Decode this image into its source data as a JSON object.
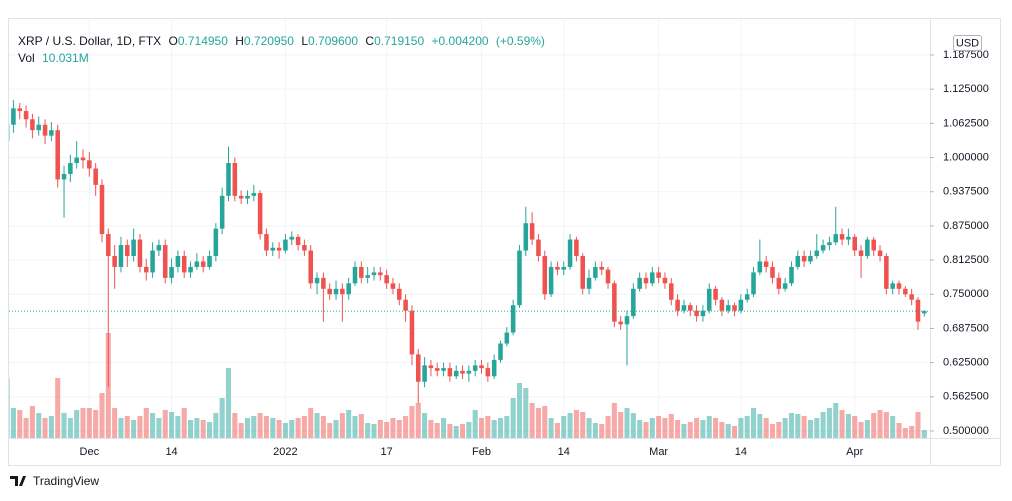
{
  "chart_data": {
    "type": "candlestick",
    "title": "XRP / U.S. Dollar, 1D, FTX",
    "ohlc_labels": [
      "O",
      "H",
      "L",
      "C"
    ],
    "ohlc_values": [
      {
        "value": 0.71495,
        "label": "0.714950"
      },
      {
        "value": 0.72095,
        "label": "0.720950"
      },
      {
        "value": 0.7096,
        "label": "0.709600"
      },
      {
        "value": 0.71915,
        "label": "0.719150"
      }
    ],
    "change": {
      "value": 0.0042,
      "label": "+0.004200"
    },
    "change_pct": {
      "value": 0.59,
      "label": "(+0.59%)"
    },
    "volume_label": "Vol",
    "volume_value": {
      "value": 10.031,
      "label": "10.031M"
    },
    "currency": "USD",
    "brand": "TradingView",
    "up_color": "#26a69a",
    "down_color": "#ef5350",
    "grid": true,
    "ylim": [
      0.4872,
      1.2515
    ],
    "xlim": [
      0.3,
      145.9
    ],
    "yticks": [
      {
        "value": 0.5,
        "label": "0.500000"
      },
      {
        "value": 0.5625,
        "label": "0.562500"
      },
      {
        "value": 0.625,
        "label": "0.625000"
      },
      {
        "value": 0.6875,
        "label": "0.687500"
      },
      {
        "value": 0.75,
        "label": "0.750000"
      },
      {
        "value": 0.8125,
        "label": "0.812500"
      },
      {
        "value": 0.875,
        "label": "0.875000"
      },
      {
        "value": 0.9375,
        "label": "0.937500"
      },
      {
        "value": 1,
        "label": "1.000000"
      },
      {
        "value": 1.0625,
        "label": "1.062500"
      },
      {
        "value": 1.125,
        "label": "1.125000"
      },
      {
        "value": 1.1875,
        "label": "1.187500"
      }
    ],
    "xticks": [
      {
        "value": 13,
        "label": "Dec"
      },
      {
        "value": 26,
        "label": "14"
      },
      {
        "value": 44,
        "label": "2022"
      },
      {
        "value": 60,
        "label": "17"
      },
      {
        "value": 75,
        "label": "Feb"
      },
      {
        "value": 88,
        "label": "14"
      },
      {
        "value": 103,
        "label": "Mar"
      },
      {
        "value": 116,
        "label": "14"
      },
      {
        "value": 134,
        "label": "Apr"
      }
    ],
    "candles": [
      [
        1.03,
        1.075,
        1.015,
        1.06
      ],
      [
        1.06,
        1.105,
        1.045,
        1.09
      ],
      [
        1.09,
        1.1,
        1.07,
        1.085
      ],
      [
        1.085,
        1.095,
        1.055,
        1.07
      ],
      [
        1.07,
        1.08,
        1.035,
        1.05
      ],
      [
        1.05,
        1.075,
        1.04,
        1.06
      ],
      [
        1.06,
        1.07,
        1.025,
        1.04
      ],
      [
        1.04,
        1.065,
        1.03,
        1.05
      ],
      [
        1.05,
        1.06,
        0.945,
        0.96
      ],
      [
        0.96,
        0.985,
        0.89,
        0.97
      ],
      [
        0.97,
        1.005,
        0.955,
        0.99
      ],
      [
        0.99,
        1.03,
        0.98,
        1.0
      ],
      [
        1.0,
        1.015,
        0.98,
        0.995
      ],
      [
        0.995,
        1.01,
        0.965,
        0.98
      ],
      [
        0.98,
        0.99,
        0.93,
        0.95
      ],
      [
        0.95,
        0.96,
        0.845,
        0.86
      ],
      [
        0.86,
        0.87,
        0.58,
        0.82
      ],
      [
        0.82,
        0.84,
        0.76,
        0.8
      ],
      [
        0.8,
        0.855,
        0.79,
        0.84
      ],
      [
        0.84,
        0.85,
        0.8,
        0.82
      ],
      [
        0.82,
        0.87,
        0.81,
        0.85
      ],
      [
        0.85,
        0.86,
        0.79,
        0.8
      ],
      [
        0.8,
        0.815,
        0.775,
        0.79
      ],
      [
        0.79,
        0.845,
        0.78,
        0.83
      ],
      [
        0.83,
        0.85,
        0.82,
        0.84
      ],
      [
        0.84,
        0.85,
        0.77,
        0.78
      ],
      [
        0.78,
        0.815,
        0.77,
        0.8
      ],
      [
        0.8,
        0.83,
        0.79,
        0.82
      ],
      [
        0.82,
        0.83,
        0.78,
        0.79
      ],
      [
        0.79,
        0.81,
        0.78,
        0.8
      ],
      [
        0.8,
        0.825,
        0.795,
        0.81
      ],
      [
        0.81,
        0.82,
        0.79,
        0.8
      ],
      [
        0.8,
        0.83,
        0.795,
        0.82
      ],
      [
        0.82,
        0.88,
        0.81,
        0.87
      ],
      [
        0.87,
        0.945,
        0.86,
        0.93
      ],
      [
        0.93,
        1.02,
        0.92,
        0.99
      ],
      [
        0.99,
        1.0,
        0.92,
        0.93
      ],
      [
        0.93,
        0.94,
        0.915,
        0.925
      ],
      [
        0.925,
        0.94,
        0.915,
        0.93
      ],
      [
        0.93,
        0.95,
        0.92,
        0.935
      ],
      [
        0.935,
        0.94,
        0.85,
        0.86
      ],
      [
        0.86,
        0.87,
        0.82,
        0.83
      ],
      [
        0.83,
        0.845,
        0.82,
        0.835
      ],
      [
        0.835,
        0.845,
        0.815,
        0.83
      ],
      [
        0.83,
        0.86,
        0.825,
        0.85
      ],
      [
        0.85,
        0.865,
        0.84,
        0.855
      ],
      [
        0.855,
        0.86,
        0.83,
        0.84
      ],
      [
        0.84,
        0.85,
        0.82,
        0.83
      ],
      [
        0.83,
        0.84,
        0.76,
        0.77
      ],
      [
        0.77,
        0.79,
        0.75,
        0.78
      ],
      [
        0.78,
        0.79,
        0.7,
        0.76
      ],
      [
        0.76,
        0.77,
        0.74,
        0.75
      ],
      [
        0.75,
        0.775,
        0.74,
        0.76
      ],
      [
        0.76,
        0.77,
        0.7,
        0.75
      ],
      [
        0.75,
        0.78,
        0.74,
        0.77
      ],
      [
        0.77,
        0.81,
        0.765,
        0.8
      ],
      [
        0.8,
        0.81,
        0.77,
        0.78
      ],
      [
        0.78,
        0.8,
        0.77,
        0.785
      ],
      [
        0.785,
        0.8,
        0.775,
        0.79
      ],
      [
        0.79,
        0.8,
        0.775,
        0.785
      ],
      [
        0.785,
        0.795,
        0.76,
        0.77
      ],
      [
        0.77,
        0.78,
        0.75,
        0.76
      ],
      [
        0.76,
        0.77,
        0.73,
        0.74
      ],
      [
        0.74,
        0.75,
        0.7,
        0.72
      ],
      [
        0.72,
        0.73,
        0.62,
        0.64
      ],
      [
        0.64,
        0.65,
        0.55,
        0.59
      ],
      [
        0.59,
        0.635,
        0.58,
        0.62
      ],
      [
        0.62,
        0.63,
        0.6,
        0.615
      ],
      [
        0.615,
        0.625,
        0.6,
        0.61
      ],
      [
        0.61,
        0.625,
        0.6,
        0.615
      ],
      [
        0.615,
        0.625,
        0.59,
        0.6
      ],
      [
        0.6,
        0.62,
        0.595,
        0.61
      ],
      [
        0.61,
        0.62,
        0.595,
        0.605
      ],
      [
        0.605,
        0.62,
        0.59,
        0.61
      ],
      [
        0.61,
        0.63,
        0.6,
        0.62
      ],
      [
        0.62,
        0.63,
        0.605,
        0.615
      ],
      [
        0.615,
        0.625,
        0.59,
        0.6
      ],
      [
        0.6,
        0.64,
        0.595,
        0.63
      ],
      [
        0.63,
        0.665,
        0.625,
        0.66
      ],
      [
        0.66,
        0.69,
        0.655,
        0.68
      ],
      [
        0.68,
        0.74,
        0.675,
        0.73
      ],
      [
        0.73,
        0.84,
        0.725,
        0.83
      ],
      [
        0.83,
        0.91,
        0.82,
        0.88
      ],
      [
        0.88,
        0.9,
        0.84,
        0.85
      ],
      [
        0.85,
        0.86,
        0.81,
        0.82
      ],
      [
        0.82,
        0.83,
        0.74,
        0.75
      ],
      [
        0.75,
        0.81,
        0.745,
        0.8
      ],
      [
        0.8,
        0.81,
        0.785,
        0.795
      ],
      [
        0.795,
        0.81,
        0.785,
        0.8
      ],
      [
        0.8,
        0.86,
        0.795,
        0.85
      ],
      [
        0.85,
        0.855,
        0.81,
        0.82
      ],
      [
        0.82,
        0.825,
        0.75,
        0.76
      ],
      [
        0.76,
        0.795,
        0.75,
        0.78
      ],
      [
        0.78,
        0.81,
        0.775,
        0.8
      ],
      [
        0.8,
        0.81,
        0.785,
        0.795
      ],
      [
        0.795,
        0.8,
        0.76,
        0.77
      ],
      [
        0.77,
        0.775,
        0.69,
        0.7
      ],
      [
        0.7,
        0.71,
        0.685,
        0.695
      ],
      [
        0.695,
        0.72,
        0.62,
        0.71
      ],
      [
        0.71,
        0.77,
        0.705,
        0.76
      ],
      [
        0.76,
        0.79,
        0.755,
        0.78
      ],
      [
        0.78,
        0.79,
        0.76,
        0.77
      ],
      [
        0.77,
        0.8,
        0.765,
        0.79
      ],
      [
        0.79,
        0.8,
        0.77,
        0.78
      ],
      [
        0.78,
        0.79,
        0.76,
        0.77
      ],
      [
        0.77,
        0.78,
        0.73,
        0.74
      ],
      [
        0.74,
        0.75,
        0.71,
        0.72
      ],
      [
        0.72,
        0.74,
        0.715,
        0.73
      ],
      [
        0.73,
        0.735,
        0.71,
        0.72
      ],
      [
        0.72,
        0.73,
        0.7,
        0.71
      ],
      [
        0.71,
        0.73,
        0.7,
        0.72
      ],
      [
        0.72,
        0.77,
        0.715,
        0.76
      ],
      [
        0.76,
        0.765,
        0.73,
        0.74
      ],
      [
        0.74,
        0.745,
        0.71,
        0.72
      ],
      [
        0.72,
        0.74,
        0.715,
        0.73
      ],
      [
        0.73,
        0.735,
        0.71,
        0.72
      ],
      [
        0.72,
        0.75,
        0.715,
        0.74
      ],
      [
        0.74,
        0.76,
        0.735,
        0.75
      ],
      [
        0.75,
        0.8,
        0.745,
        0.79
      ],
      [
        0.79,
        0.85,
        0.785,
        0.81
      ],
      [
        0.81,
        0.82,
        0.79,
        0.8
      ],
      [
        0.8,
        0.81,
        0.77,
        0.78
      ],
      [
        0.78,
        0.79,
        0.75,
        0.76
      ],
      [
        0.76,
        0.78,
        0.755,
        0.77
      ],
      [
        0.77,
        0.81,
        0.765,
        0.8
      ],
      [
        0.8,
        0.83,
        0.795,
        0.82
      ],
      [
        0.82,
        0.83,
        0.8,
        0.81
      ],
      [
        0.81,
        0.83,
        0.805,
        0.82
      ],
      [
        0.82,
        0.86,
        0.815,
        0.83
      ],
      [
        0.83,
        0.85,
        0.825,
        0.84
      ],
      [
        0.84,
        0.855,
        0.83,
        0.845
      ],
      [
        0.845,
        0.91,
        0.84,
        0.86
      ],
      [
        0.86,
        0.87,
        0.84,
        0.85
      ],
      [
        0.85,
        0.87,
        0.84,
        0.855
      ],
      [
        0.855,
        0.86,
        0.82,
        0.83
      ],
      [
        0.83,
        0.84,
        0.78,
        0.82
      ],
      [
        0.82,
        0.855,
        0.815,
        0.85
      ],
      [
        0.85,
        0.855,
        0.82,
        0.83
      ],
      [
        0.83,
        0.84,
        0.81,
        0.82
      ],
      [
        0.82,
        0.825,
        0.75,
        0.76
      ],
      [
        0.76,
        0.775,
        0.75,
        0.77
      ],
      [
        0.77,
        0.775,
        0.75,
        0.76
      ],
      [
        0.76,
        0.765,
        0.745,
        0.75
      ],
      [
        0.75,
        0.76,
        0.73,
        0.74
      ],
      [
        0.74,
        0.745,
        0.685,
        0.7
      ],
      [
        0.71495,
        0.72095,
        0.7096,
        0.71915
      ]
    ],
    "volume": [
      75,
      37.5,
      35,
      25,
      40,
      31.25,
      25,
      27.5,
      75,
      31.25,
      25,
      35,
      37.5,
      37.5,
      35,
      56.25,
      131.25,
      37.5,
      25,
      27.5,
      22.5,
      27.5,
      37.5,
      31.25,
      25,
      35,
      32.5,
      27.5,
      37.5,
      22.5,
      25,
      22.5,
      20,
      31.25,
      50,
      87.5,
      31.25,
      18.75,
      25,
      27.5,
      31.25,
      27.5,
      25,
      22.5,
      18.75,
      22.5,
      25,
      27.5,
      37.5,
      31.25,
      27.5,
      18.75,
      22.5,
      31.25,
      35,
      27.5,
      30,
      18.75,
      17.5,
      22.5,
      20,
      25,
      22.5,
      27.5,
      40,
      43.75,
      31.25,
      22.5,
      18.75,
      25,
      17.5,
      15,
      17.5,
      20,
      35,
      25,
      27.5,
      22.5,
      25,
      27.5,
      50,
      68.75,
      62.5,
      43.75,
      37.5,
      40,
      25,
      18.75,
      27.5,
      31.25,
      35,
      32.5,
      25,
      18.75,
      17.5,
      27.5,
      43.75,
      32.5,
      37.5,
      31.25,
      22.5,
      20,
      25,
      27.5,
      25,
      30,
      22.5,
      17.5,
      20,
      25,
      22.5,
      27.5,
      25,
      20,
      17.5,
      15,
      25,
      27.5,
      37.5,
      30,
      25,
      17.5,
      20,
      25,
      31.25,
      30,
      27.5,
      22.5,
      25,
      32.5,
      37.5,
      43.75,
      35,
      30,
      27.5,
      20,
      22.5,
      31.25,
      35,
      32.5,
      27.5,
      18.75,
      12.5,
      15,
      32.5,
      10.031
    ]
  }
}
